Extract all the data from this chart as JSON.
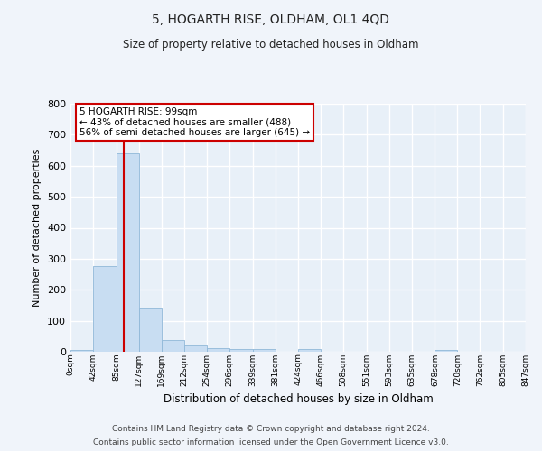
{
  "title": "5, HOGARTH RISE, OLDHAM, OL1 4QD",
  "subtitle": "Size of property relative to detached houses in Oldham",
  "xlabel": "Distribution of detached houses by size in Oldham",
  "ylabel": "Number of detached properties",
  "bar_color": "#c8ddf2",
  "bar_edge_color": "#90b8d8",
  "background_color": "#e8f0f8",
  "grid_color": "#ffffff",
  "fig_bg_color": "#f0f4fa",
  "vline_color": "#cc0000",
  "vline_x": 99,
  "annotation_title": "5 HOGARTH RISE: 99sqm",
  "annotation_line1": "← 43% of detached houses are smaller (488)",
  "annotation_line2": "56% of semi-detached houses are larger (645) →",
  "annotation_box_color": "#ffffff",
  "annotation_box_edge": "#cc0000",
  "bin_edges": [
    0,
    42,
    85,
    127,
    169,
    212,
    254,
    296,
    339,
    381,
    424,
    466,
    508,
    551,
    593,
    635,
    678,
    720,
    762,
    805,
    847
  ],
  "bar_heights": [
    7,
    275,
    640,
    140,
    37,
    20,
    13,
    10,
    8,
    0,
    8,
    0,
    0,
    0,
    0,
    0,
    5,
    0,
    0,
    0
  ],
  "ylim": [
    0,
    800
  ],
  "yticks": [
    0,
    100,
    200,
    300,
    400,
    500,
    600,
    700,
    800
  ],
  "footer_line1": "Contains HM Land Registry data © Crown copyright and database right 2024.",
  "footer_line2": "Contains public sector information licensed under the Open Government Licence v3.0."
}
